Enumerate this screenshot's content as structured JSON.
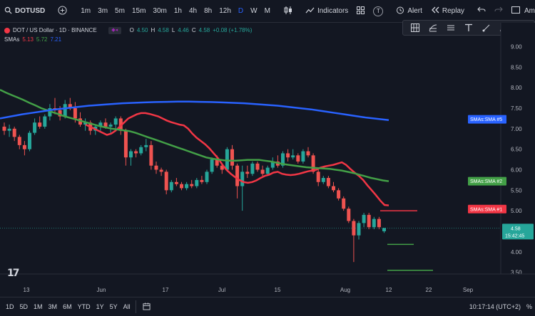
{
  "topbar": {
    "symbol": "DOTUSD",
    "timeframes": [
      "1m",
      "3m",
      "5m",
      "15m",
      "30m",
      "1h",
      "4h",
      "8h",
      "12h",
      "D",
      "W",
      "M"
    ],
    "active_timeframe": "D",
    "indicators_label": "Indicators",
    "alert_label": "Alert",
    "replay_label": "Replay",
    "account_label": "Ama",
    "t_button": "T"
  },
  "legend": {
    "title": "DOT / US Dollar · 1D · BINANCE",
    "ohlc": {
      "open_label": "O",
      "open": "4.50",
      "high_label": "H",
      "high": "4.58",
      "low_label": "L",
      "low": "4.46",
      "close_label": "C",
      "close": "4.58",
      "change": "+0.08 (+1.78%)"
    },
    "sma_label": "SMAs",
    "sma_values": [
      "5.13",
      "5.72",
      "7.21"
    ]
  },
  "price_axis": {
    "ticks": [
      "9.00",
      "8.50",
      "8.00",
      "7.50",
      "7.00",
      "6.50",
      "6.00",
      "5.50",
      "5.00",
      "4.50",
      "4.00",
      "3.50"
    ],
    "current_price": "4.58",
    "countdown": "15:42:45",
    "tags": [
      {
        "label": "SMAs:SMA #5",
        "color": "#2962ff"
      },
      {
        "label": "SMAs:SMA #2",
        "color": "#43a047"
      },
      {
        "label": "SMAs:SMA #1",
        "color": "#f23645"
      }
    ]
  },
  "time_axis": {
    "ticks": [
      "13",
      "Jun",
      "17",
      "Jul",
      "15",
      "Aug",
      "12",
      "22",
      "Sep"
    ]
  },
  "bottombar": {
    "ranges": [
      "1D",
      "5D",
      "1M",
      "3M",
      "6M",
      "YTD",
      "1Y",
      "5Y",
      "All"
    ],
    "clock": "10:17:14 (UTC+2)"
  },
  "colors": {
    "up": "#26a69a",
    "down": "#ef5350",
    "sma1": "#f23645",
    "sma2": "#43a047",
    "sma5": "#2962ff",
    "bg": "#131722"
  },
  "chart_data": {
    "type": "candlestick",
    "ylim": [
      3.25,
      9.2
    ],
    "candles": [
      [
        7.05,
        7.15,
        6.85,
        6.95
      ],
      [
        6.95,
        7.1,
        6.8,
        7.0
      ],
      [
        7.0,
        7.05,
        6.7,
        6.8
      ],
      [
        6.8,
        6.85,
        6.5,
        6.6
      ],
      [
        6.6,
        6.7,
        6.35,
        6.5
      ],
      [
        6.5,
        6.95,
        6.45,
        6.9
      ],
      [
        6.9,
        7.25,
        6.85,
        7.15
      ],
      [
        7.15,
        7.3,
        7.0,
        7.05
      ],
      [
        7.05,
        7.35,
        7.0,
        7.3
      ],
      [
        7.3,
        7.6,
        7.2,
        7.5
      ],
      [
        7.5,
        7.75,
        7.35,
        7.45
      ],
      [
        7.45,
        7.55,
        7.2,
        7.3
      ],
      [
        7.3,
        7.7,
        7.25,
        7.6
      ],
      [
        7.6,
        7.75,
        7.45,
        7.5
      ],
      [
        7.5,
        7.65,
        7.15,
        7.25
      ],
      [
        7.25,
        7.4,
        7.05,
        7.1
      ],
      [
        7.1,
        7.25,
        6.95,
        7.15
      ],
      [
        7.15,
        7.2,
        6.85,
        6.95
      ],
      [
        6.95,
        7.1,
        6.85,
        7.05
      ],
      [
        7.05,
        7.2,
        6.95,
        7.15
      ],
      [
        7.15,
        7.25,
        7.0,
        7.05
      ],
      [
        7.05,
        7.15,
        6.9,
        7.1
      ],
      [
        7.1,
        7.3,
        7.0,
        7.25
      ],
      [
        7.25,
        7.3,
        6.85,
        6.95
      ],
      [
        6.95,
        7.0,
        6.1,
        6.3
      ],
      [
        6.3,
        6.5,
        6.1,
        6.45
      ],
      [
        6.45,
        6.5,
        6.3,
        6.4
      ],
      [
        6.4,
        6.6,
        6.35,
        6.55
      ],
      [
        6.55,
        6.75,
        6.45,
        6.6
      ],
      [
        6.6,
        6.7,
        6.0,
        6.1
      ],
      [
        6.1,
        6.2,
        5.9,
        6.0
      ],
      [
        6.0,
        6.05,
        5.85,
        5.95
      ],
      [
        5.95,
        6.0,
        5.4,
        5.5
      ],
      [
        5.5,
        5.75,
        5.45,
        5.7
      ],
      [
        5.7,
        5.8,
        5.6,
        5.65
      ],
      [
        5.65,
        5.7,
        5.5,
        5.55
      ],
      [
        5.55,
        5.7,
        5.5,
        5.65
      ],
      [
        5.65,
        5.75,
        5.55,
        5.6
      ],
      [
        5.6,
        5.8,
        5.55,
        5.75
      ],
      [
        5.75,
        5.85,
        5.65,
        5.7
      ],
      [
        5.7,
        6.0,
        5.65,
        5.95
      ],
      [
        5.95,
        6.3,
        5.9,
        6.25
      ],
      [
        6.25,
        6.35,
        6.05,
        6.1
      ],
      [
        6.1,
        6.15,
        5.9,
        6.0
      ],
      [
        6.0,
        6.55,
        5.95,
        6.5
      ],
      [
        6.5,
        6.6,
        6.0,
        6.1
      ],
      [
        6.1,
        6.15,
        5.3,
        5.6
      ],
      [
        5.6,
        6.1,
        5.0,
        5.95
      ],
      [
        5.95,
        6.1,
        5.8,
        5.9
      ],
      [
        5.9,
        6.2,
        5.85,
        6.15
      ],
      [
        6.15,
        6.2,
        5.95,
        6.0
      ],
      [
        6.0,
        6.1,
        5.85,
        5.9
      ],
      [
        5.9,
        6.1,
        5.85,
        6.05
      ],
      [
        6.05,
        6.3,
        6.0,
        6.2
      ],
      [
        6.2,
        6.35,
        6.05,
        6.1
      ],
      [
        6.1,
        6.45,
        6.05,
        6.4
      ],
      [
        6.4,
        6.5,
        6.2,
        6.3
      ],
      [
        6.3,
        6.5,
        6.25,
        6.35
      ],
      [
        6.35,
        6.4,
        6.15,
        6.2
      ],
      [
        6.2,
        6.5,
        6.15,
        6.45
      ],
      [
        6.45,
        6.55,
        6.3,
        6.35
      ],
      [
        6.35,
        6.4,
        5.9,
        5.95
      ],
      [
        5.95,
        6.0,
        5.6,
        5.7
      ],
      [
        5.7,
        5.85,
        5.65,
        5.8
      ],
      [
        5.8,
        5.85,
        5.55,
        5.6
      ],
      [
        5.6,
        5.7,
        5.45,
        5.5
      ],
      [
        5.5,
        5.55,
        5.25,
        5.3
      ],
      [
        5.3,
        5.35,
        5.0,
        5.05
      ],
      [
        5.05,
        5.1,
        4.7,
        4.75
      ],
      [
        4.75,
        4.8,
        3.75,
        4.4
      ],
      [
        4.4,
        4.75,
        4.3,
        4.7
      ],
      [
        4.7,
        4.95,
        4.6,
        4.9
      ],
      [
        4.9,
        4.95,
        4.55,
        4.6
      ],
      [
        4.6,
        4.85,
        4.55,
        4.8
      ],
      [
        4.8,
        4.85,
        4.55,
        4.6
      ],
      [
        4.5,
        4.58,
        4.46,
        4.58
      ]
    ],
    "sma_series": [
      {
        "name": "SMA #1",
        "values": [
          7.1,
          7.05,
          7.0,
          6.95,
          6.9,
          6.85,
          6.88,
          6.95,
          7.05,
          7.15,
          7.25,
          7.3,
          7.35,
          7.38,
          7.38,
          7.36,
          7.33,
          7.3,
          7.25,
          7.2,
          7.16,
          7.13,
          7.1,
          7.08,
          7.0,
          6.88,
          6.78,
          6.7,
          6.62,
          6.52,
          6.4,
          6.28,
          6.13,
          6.0,
          5.9,
          5.82,
          5.75,
          5.7,
          5.68,
          5.7,
          5.74,
          5.8,
          5.85,
          5.88,
          5.93,
          5.95,
          5.9,
          5.88,
          5.87,
          5.88,
          5.9,
          5.93,
          5.96,
          5.98,
          6.0,
          6.05,
          6.08,
          6.1,
          6.12,
          6.15,
          6.18,
          6.12,
          6.02,
          5.93,
          5.85,
          5.75,
          5.62,
          5.5,
          5.38,
          5.25,
          5.14,
          5.13
        ]
      },
      {
        "name": "SMA #2",
        "values": [
          7.95,
          7.88,
          7.82,
          7.76,
          7.7,
          7.63,
          7.57,
          7.5,
          7.45,
          7.4,
          7.35,
          7.3,
          7.26,
          7.22,
          7.18,
          7.14,
          7.1,
          7.06,
          7.03,
          7.0,
          6.98,
          6.96,
          6.94,
          6.9,
          6.85,
          6.8,
          6.75,
          6.7,
          6.65,
          6.6,
          6.55,
          6.5,
          6.45,
          6.4,
          6.35,
          6.3,
          6.27,
          6.25,
          6.23,
          6.22,
          6.22,
          6.23,
          6.24,
          6.24,
          6.24,
          6.22,
          6.2,
          6.17,
          6.14,
          6.12,
          6.1,
          6.08,
          6.06,
          6.05,
          6.04,
          6.03,
          6.02,
          6.0,
          5.98,
          5.95,
          5.92,
          5.88,
          5.84,
          5.8,
          5.77,
          5.74,
          5.72
        ]
      },
      {
        "name": "SMA #5",
        "values": [
          7.25,
          7.3,
          7.35,
          7.39,
          7.43,
          7.47,
          7.5,
          7.53,
          7.56,
          7.58,
          7.6,
          7.62,
          7.63,
          7.64,
          7.65,
          7.655,
          7.66,
          7.66,
          7.655,
          7.65,
          7.64,
          7.63,
          7.62,
          7.6,
          7.58,
          7.56,
          7.53,
          7.5,
          7.47,
          7.43,
          7.39,
          7.35,
          7.31,
          7.27,
          7.24,
          7.21
        ]
      }
    ]
  }
}
